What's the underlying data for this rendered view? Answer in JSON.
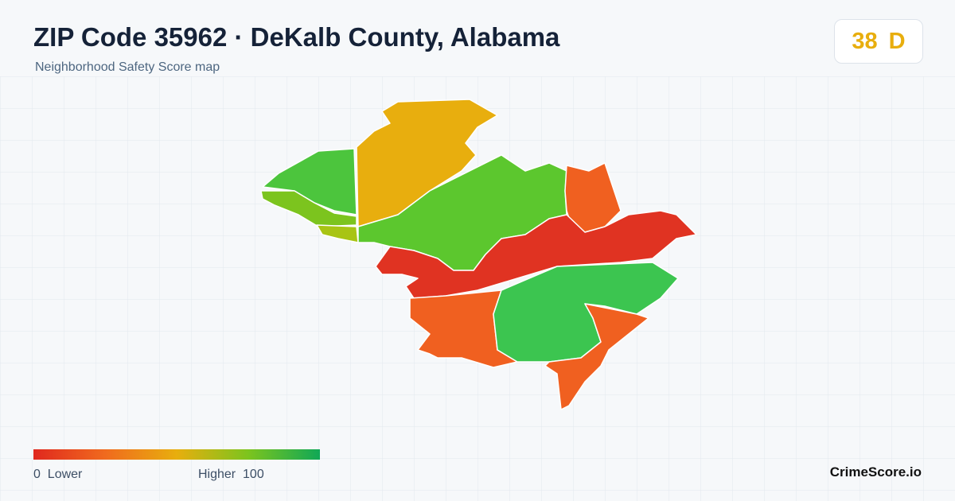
{
  "header": {
    "title": "ZIP Code 35962 · DeKalb County, Alabama",
    "subtitle": "Neighborhood Safety Score map"
  },
  "score": {
    "value": "38",
    "grade": "D"
  },
  "legend": {
    "min": "0",
    "min_label": "Lower",
    "max_label": "Higher",
    "max": "100"
  },
  "brand": "CrimeScore.io"
}
